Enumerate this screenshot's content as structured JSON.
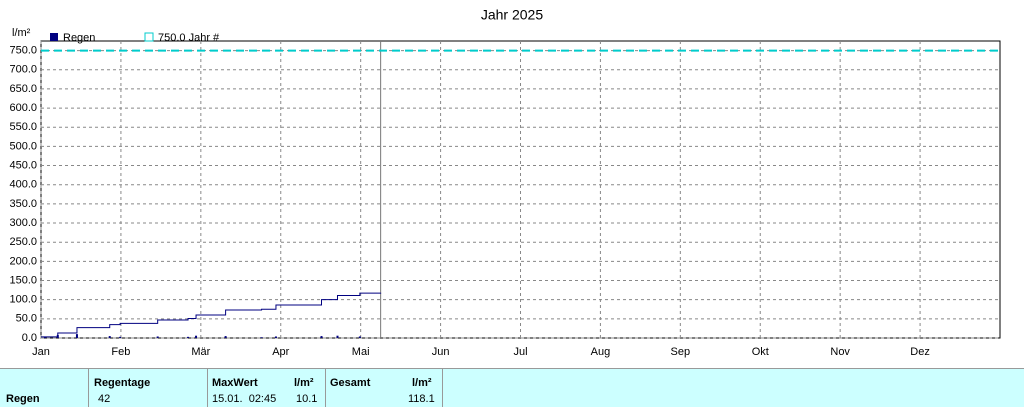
{
  "chart_data": {
    "type": "line",
    "title": "Jahr 2025",
    "y_unit": "l/m²",
    "xlim": [
      0,
      12
    ],
    "xticks": [
      {
        "value": 0,
        "label": "Jan"
      },
      {
        "value": 1,
        "label": "Feb"
      },
      {
        "value": 2,
        "label": "Mär"
      },
      {
        "value": 3,
        "label": "Apr"
      },
      {
        "value": 4,
        "label": "Mai"
      },
      {
        "value": 5,
        "label": "Jun"
      },
      {
        "value": 6,
        "label": "Jul"
      },
      {
        "value": 7,
        "label": "Aug"
      },
      {
        "value": 8,
        "label": "Sep"
      },
      {
        "value": 9,
        "label": "Okt"
      },
      {
        "value": 10,
        "label": "Nov"
      },
      {
        "value": 11,
        "label": "Dez"
      }
    ],
    "ylim": [
      0,
      775
    ],
    "yticks": [
      {
        "value": 0,
        "label": "0.0"
      },
      {
        "value": 50,
        "label": "50.0"
      },
      {
        "value": 100,
        "label": "100.0"
      },
      {
        "value": 150,
        "label": "150.0"
      },
      {
        "value": 200,
        "label": "200.0"
      },
      {
        "value": 250,
        "label": "250.0"
      },
      {
        "value": 300,
        "label": "300.0"
      },
      {
        "value": 350,
        "label": "350.0"
      },
      {
        "value": 400,
        "label": "400.0"
      },
      {
        "value": 450,
        "label": "450.0"
      },
      {
        "value": 500,
        "label": "500.0"
      },
      {
        "value": 550,
        "label": "550.0"
      },
      {
        "value": 600,
        "label": "600.0"
      },
      {
        "value": 650,
        "label": "650.0"
      },
      {
        "value": 700,
        "label": "700.0"
      },
      {
        "value": 750,
        "label": "750.0"
      }
    ],
    "grid": true,
    "step": true,
    "today_x": 4.25,
    "series": [
      {
        "name": "Regen",
        "color": "#000080",
        "x": [
          0,
          0.21,
          0.45,
          0.86,
          0.99,
          1.46,
          1.84,
          1.94,
          2.31,
          2.76,
          2.94,
          3.51,
          3.71,
          3.99,
          4.25
        ],
        "values": [
          3,
          13,
          27,
          35,
          38,
          47,
          51,
          60,
          73,
          75,
          86,
          100,
          111,
          117,
          118.1
        ],
        "bars_x": [
          0.05,
          0.21,
          0.45,
          0.86,
          0.99,
          1.46,
          1.84,
          1.94,
          2.31,
          2.76,
          2.94,
          3.51,
          3.71,
          3.99
        ],
        "bars": [
          3,
          8,
          10.1,
          5,
          3,
          4,
          3,
          6,
          5,
          2,
          4,
          5,
          6,
          4
        ]
      },
      {
        "name": "750.0 Jahr #",
        "color": "#00cccc",
        "reference": 750
      }
    ]
  },
  "table": {
    "columns": [
      "Regentage",
      "MaxWert",
      "l/m²",
      "Gesamt",
      "l/m²"
    ],
    "row": {
      "label": "Regen",
      "regentage": 42,
      "maxwert_date": "15.01.  02:45",
      "maxwert": 10.1,
      "gesamt": 118.1
    }
  }
}
